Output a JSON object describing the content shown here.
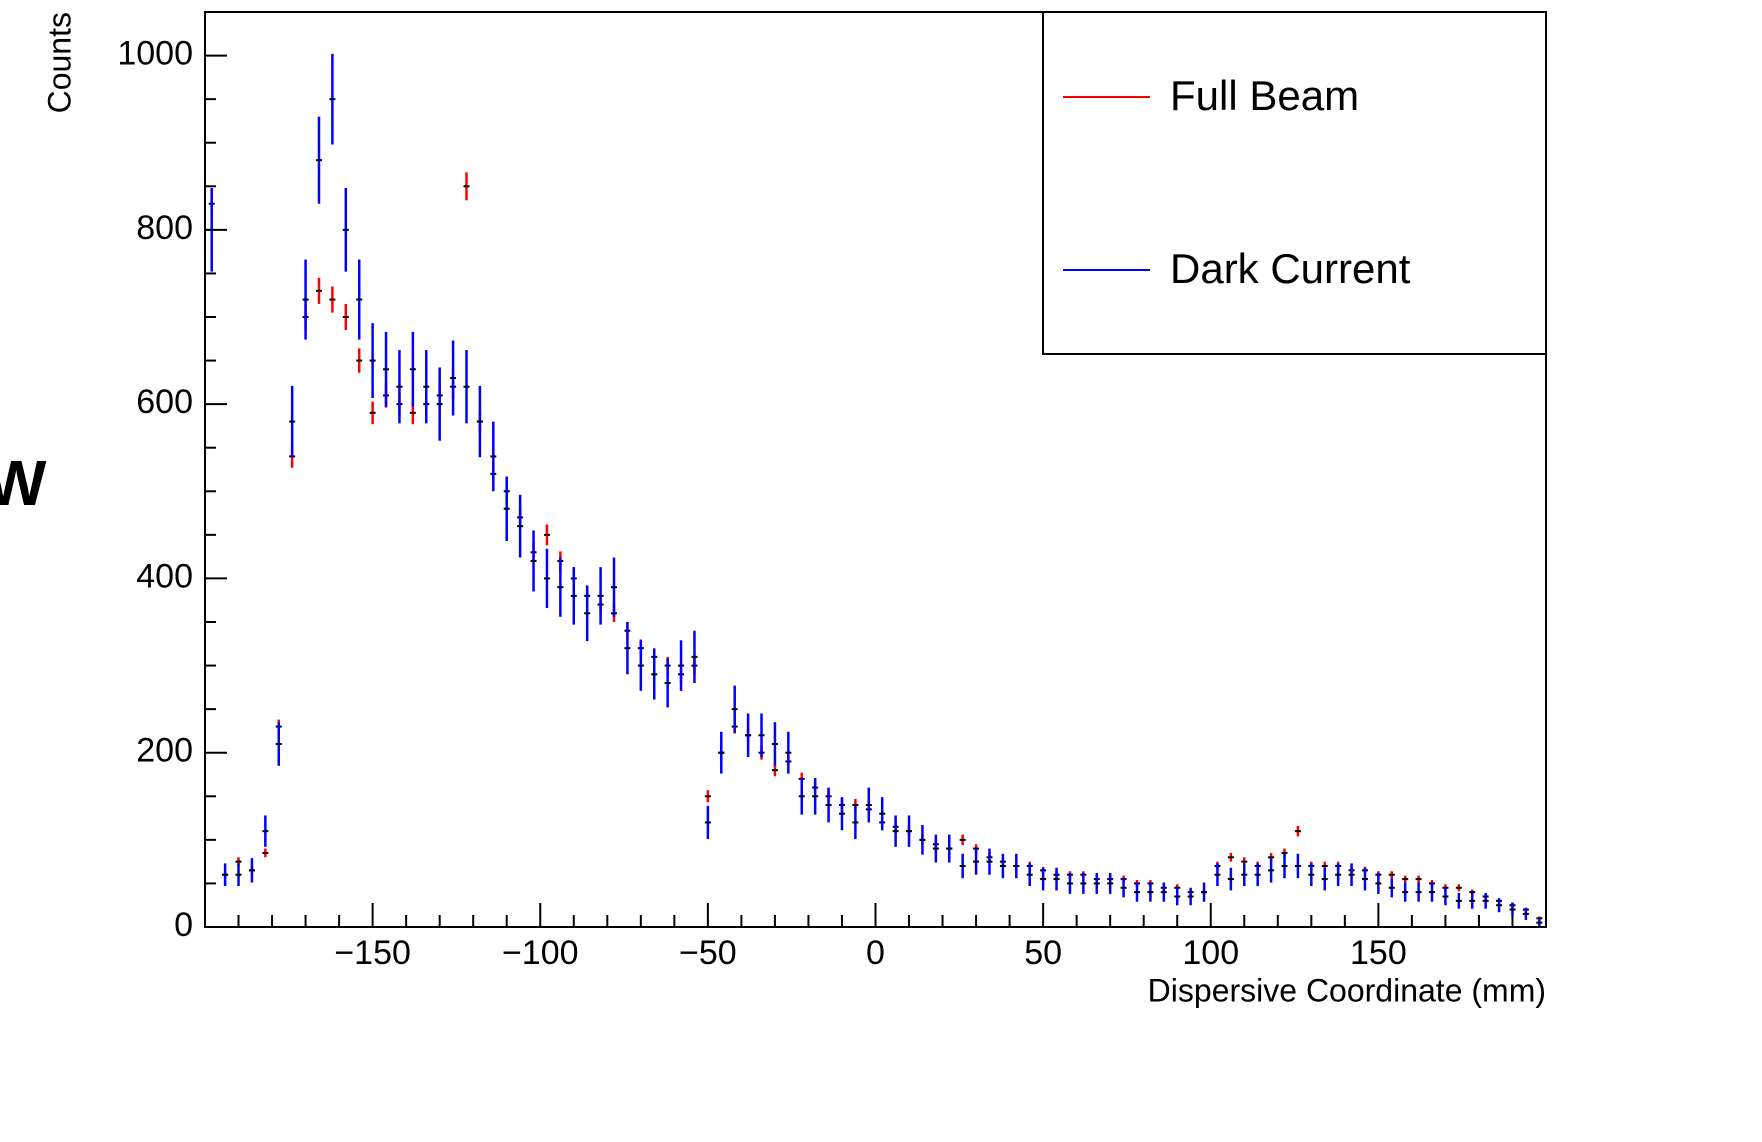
{
  "chart_data": {
    "type": "errorbar",
    "side_text": "W",
    "x_label": "Dispersive Coordinate (mm)",
    "y_label": "Counts",
    "xlim": [
      -200,
      200
    ],
    "ylim": [
      0,
      1050
    ],
    "xticks": [
      {
        "value": -150,
        "label": "−150"
      },
      {
        "value": -100,
        "label": "−100"
      },
      {
        "value": -50,
        "label": "−50"
      },
      0,
      50,
      100,
      150
    ],
    "yticks": [
      0,
      200,
      400,
      600,
      800,
      1000
    ],
    "legend": "top-right",
    "x": [
      -198,
      -194,
      -190,
      -186,
      -182,
      -178,
      -174,
      -170,
      -166,
      -162,
      -158,
      -154,
      -150,
      -146,
      -142,
      -138,
      -134,
      -130,
      -126,
      -122,
      -118,
      -114,
      -110,
      -106,
      -102,
      -98,
      -94,
      -90,
      -86,
      -82,
      -78,
      -74,
      -70,
      -66,
      -62,
      -58,
      -54,
      -50,
      -46,
      -42,
      -38,
      -34,
      -30,
      -26,
      -22,
      -18,
      -14,
      -10,
      -6,
      -2,
      2,
      6,
      10,
      14,
      18,
      22,
      26,
      30,
      34,
      38,
      42,
      46,
      50,
      54,
      58,
      62,
      66,
      70,
      74,
      78,
      82,
      86,
      90,
      94,
      98,
      102,
      106,
      110,
      114,
      118,
      122,
      126,
      130,
      134,
      138,
      142,
      146,
      150,
      154,
      158,
      162,
      166,
      170,
      174,
      178,
      182,
      186,
      190,
      194,
      198
    ],
    "series": [
      {
        "name": "Full Beam",
        "color": "#ff0000",
        "values": [
          830,
          60,
          75,
          65,
          85,
          230,
          540,
          700,
          730,
          720,
          700,
          650,
          590,
          610,
          600,
          590,
          600,
          610,
          620,
          850,
          580,
          520,
          500,
          470,
          430,
          450,
          420,
          400,
          380,
          370,
          360,
          340,
          320,
          310,
          300,
          290,
          300,
          150,
          200,
          230,
          220,
          200,
          180,
          190,
          170,
          160,
          150,
          140,
          140,
          135,
          120,
          115,
          110,
          100,
          95,
          90,
          100,
          90,
          80,
          75,
          70,
          70,
          65,
          60,
          60,
          60,
          55,
          55,
          55,
          50,
          50,
          45,
          45,
          40,
          40,
          70,
          80,
          75,
          70,
          80,
          85,
          110,
          70,
          70,
          70,
          65,
          65,
          60,
          60,
          55,
          55,
          50,
          45,
          45,
          40,
          35,
          30,
          25,
          20,
          10
        ],
        "errors": [
          16,
          4,
          5,
          4,
          5,
          8,
          13,
          15,
          15,
          15,
          15,
          14,
          13,
          14,
          13,
          13,
          13,
          14,
          14,
          16,
          13,
          13,
          12,
          12,
          11,
          12,
          11,
          11,
          11,
          11,
          10,
          10,
          10,
          10,
          10,
          9,
          10,
          7,
          8,
          8,
          8,
          8,
          7,
          8,
          7,
          7,
          7,
          7,
          7,
          6,
          6,
          6,
          6,
          6,
          5,
          5,
          6,
          5,
          5,
          5,
          5,
          5,
          4,
          4,
          4,
          4,
          4,
          4,
          4,
          4,
          4,
          4,
          4,
          3,
          3,
          5,
          5,
          5,
          5,
          5,
          5,
          6,
          5,
          5,
          5,
          4,
          4,
          4,
          4,
          4,
          4,
          4,
          4,
          4,
          3,
          3,
          3,
          3,
          2,
          2
        ]
      },
      {
        "name": "Dark Current",
        "color": "#0000ff",
        "values": [
          800,
          60,
          60,
          65,
          110,
          210,
          580,
          720,
          880,
          950,
          800,
          720,
          650,
          640,
          620,
          640,
          620,
          600,
          630,
          620,
          580,
          540,
          480,
          460,
          420,
          400,
          390,
          380,
          360,
          380,
          390,
          320,
          300,
          290,
          280,
          300,
          310,
          120,
          200,
          250,
          220,
          220,
          210,
          200,
          150,
          150,
          140,
          130,
          120,
          140,
          130,
          110,
          110,
          100,
          90,
          90,
          70,
          75,
          75,
          70,
          70,
          60,
          55,
          55,
          50,
          50,
          50,
          50,
          45,
          40,
          40,
          40,
          35,
          35,
          40,
          60,
          55,
          60,
          60,
          65,
          70,
          70,
          60,
          55,
          60,
          60,
          55,
          50,
          45,
          40,
          40,
          40,
          35,
          30,
          30,
          30,
          25,
          20,
          15,
          5
        ],
        "errors": [
          48,
          13,
          13,
          14,
          18,
          25,
          41,
          46,
          50,
          52,
          48,
          46,
          43,
          43,
          42,
          43,
          42,
          42,
          43,
          42,
          41,
          40,
          37,
          36,
          35,
          34,
          34,
          33,
          32,
          33,
          34,
          30,
          29,
          29,
          28,
          29,
          30,
          19,
          24,
          27,
          25,
          25,
          25,
          24,
          21,
          21,
          20,
          19,
          19,
          20,
          19,
          18,
          18,
          17,
          16,
          16,
          14,
          15,
          15,
          14,
          14,
          13,
          13,
          13,
          12,
          12,
          12,
          12,
          11,
          11,
          11,
          11,
          10,
          10,
          11,
          13,
          13,
          13,
          13,
          14,
          14,
          14,
          13,
          13,
          13,
          13,
          13,
          12,
          11,
          11,
          11,
          11,
          10,
          9,
          9,
          9,
          8,
          8,
          7,
          4
        ]
      }
    ]
  }
}
